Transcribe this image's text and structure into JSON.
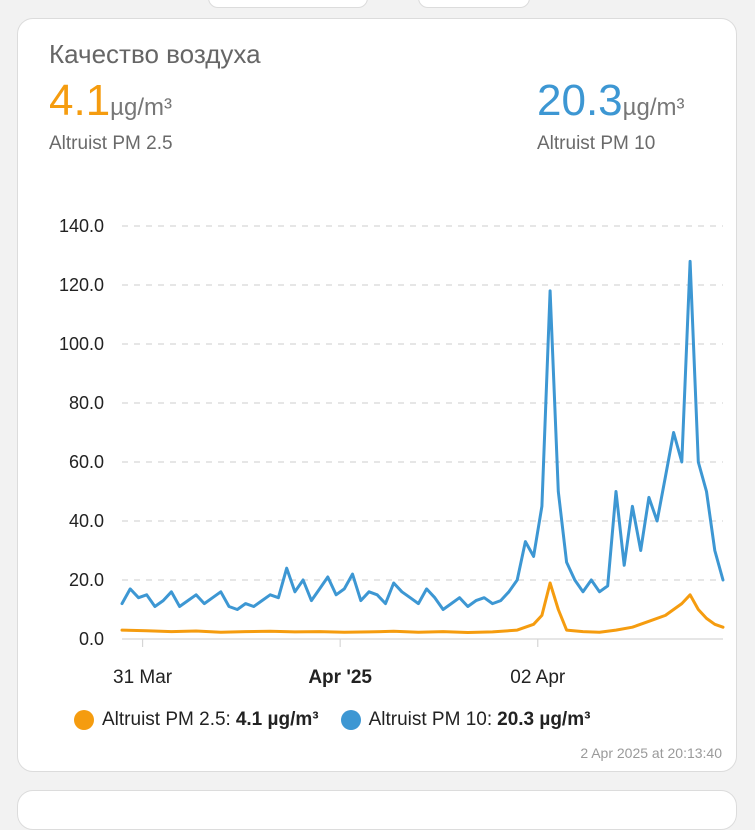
{
  "card": {
    "title": "Качество воздуха",
    "sensors": [
      {
        "value": "4.1",
        "unit": "µg/m³",
        "name": "Altruist PM 2.5",
        "color": "#f59c0f"
      },
      {
        "value": "20.3",
        "unit": "µg/m³",
        "name": "Altruist PM 10",
        "color": "#3d97d3"
      }
    ],
    "legend": [
      {
        "name": "Altruist PM 2.5:",
        "value": "4.1 µg/m³"
      },
      {
        "name": "Altruist PM 10:",
        "value": "20.3 µg/m³"
      }
    ],
    "timestamp": "2 Apr 2025 at 20:13:40"
  },
  "chart_data": {
    "type": "line",
    "title": "",
    "xlabel": "",
    "ylabel": "",
    "ylim": [
      0,
      140
    ],
    "yticks": [
      "0.0",
      "20.0",
      "40.0",
      "60.0",
      "80.0",
      "100.0",
      "120.0",
      "140.0"
    ],
    "xticks": [
      {
        "label": "31 Mar",
        "bold": false,
        "hour": 2.5
      },
      {
        "label": "Apr '25",
        "bold": true,
        "hour": 26.5
      },
      {
        "label": "02 Apr",
        "bold": false,
        "hour": 50.5
      }
    ],
    "x_unit": "hours since 30 Mar 21:30",
    "x_range": [
      0,
      71
    ],
    "grid": true,
    "series": [
      {
        "name": "Altruist PM 10",
        "color": "#3d97d3",
        "points": [
          [
            0,
            12
          ],
          [
            1,
            17
          ],
          [
            2,
            14
          ],
          [
            3,
            15
          ],
          [
            4,
            11
          ],
          [
            5,
            13
          ],
          [
            6,
            16
          ],
          [
            7,
            11
          ],
          [
            8,
            13
          ],
          [
            9,
            15
          ],
          [
            10,
            12
          ],
          [
            11,
            14
          ],
          [
            12,
            16
          ],
          [
            13,
            11
          ],
          [
            14,
            10
          ],
          [
            15,
            12
          ],
          [
            16,
            11
          ],
          [
            17,
            13
          ],
          [
            18,
            15
          ],
          [
            19,
            14
          ],
          [
            20,
            24
          ],
          [
            21,
            16
          ],
          [
            22,
            20
          ],
          [
            23,
            13
          ],
          [
            24,
            17
          ],
          [
            25,
            21
          ],
          [
            26,
            15
          ],
          [
            27,
            17
          ],
          [
            28,
            22
          ],
          [
            29,
            13
          ],
          [
            30,
            16
          ],
          [
            31,
            15
          ],
          [
            32,
            12
          ],
          [
            33,
            19
          ],
          [
            34,
            16
          ],
          [
            35,
            14
          ],
          [
            36,
            12
          ],
          [
            37,
            17
          ],
          [
            38,
            14
          ],
          [
            39,
            10
          ],
          [
            40,
            12
          ],
          [
            41,
            14
          ],
          [
            42,
            11
          ],
          [
            43,
            13
          ],
          [
            44,
            14
          ],
          [
            45,
            12
          ],
          [
            46,
            13
          ],
          [
            47,
            16
          ],
          [
            48,
            20
          ],
          [
            49,
            33
          ],
          [
            50,
            28
          ],
          [
            51,
            45
          ],
          [
            52,
            118
          ],
          [
            53,
            50
          ],
          [
            54,
            26
          ],
          [
            55,
            20
          ],
          [
            56,
            16
          ],
          [
            57,
            20
          ],
          [
            58,
            16
          ],
          [
            59,
            18
          ],
          [
            60,
            50
          ],
          [
            61,
            25
          ],
          [
            62,
            45
          ],
          [
            63,
            30
          ],
          [
            64,
            48
          ],
          [
            65,
            40
          ],
          [
            66,
            55
          ],
          [
            67,
            70
          ],
          [
            68,
            60
          ],
          [
            69,
            128
          ],
          [
            70,
            60
          ],
          [
            71,
            50
          ],
          [
            72,
            30
          ],
          [
            73,
            20
          ]
        ],
        "x_range_override": [
          0,
          73
        ]
      },
      {
        "name": "Altruist PM 2.5",
        "color": "#f59c0f",
        "points": [
          [
            0,
            3
          ],
          [
            3,
            2.8
          ],
          [
            6,
            2.5
          ],
          [
            9,
            2.7
          ],
          [
            12,
            2.3
          ],
          [
            15,
            2.5
          ],
          [
            18,
            2.6
          ],
          [
            21,
            2.4
          ],
          [
            24,
            2.5
          ],
          [
            27,
            2.3
          ],
          [
            30,
            2.4
          ],
          [
            33,
            2.6
          ],
          [
            36,
            2.3
          ],
          [
            39,
            2.5
          ],
          [
            42,
            2.2
          ],
          [
            45,
            2.4
          ],
          [
            48,
            3
          ],
          [
            50,
            5
          ],
          [
            51,
            8
          ],
          [
            52,
            19
          ],
          [
            53,
            10
          ],
          [
            54,
            3
          ],
          [
            56,
            2.5
          ],
          [
            58,
            2.3
          ],
          [
            60,
            3
          ],
          [
            62,
            4
          ],
          [
            64,
            6
          ],
          [
            66,
            8
          ],
          [
            68,
            12
          ],
          [
            69,
            15
          ],
          [
            70,
            10
          ],
          [
            71,
            7
          ],
          [
            72,
            5
          ],
          [
            73,
            4
          ]
        ],
        "x_range_override": [
          0,
          73
        ]
      }
    ]
  }
}
